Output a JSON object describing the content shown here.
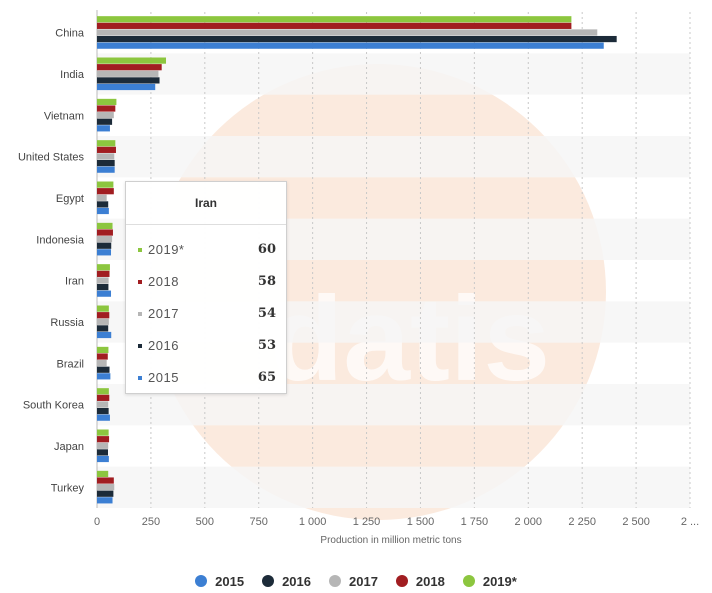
{
  "chart_data": {
    "type": "bar",
    "orientation": "horizontal",
    "categories": [
      "China",
      "India",
      "Vietnam",
      "United States",
      "Egypt",
      "Indonesia",
      "Iran",
      "Russia",
      "Brazil",
      "South Korea",
      "Japan",
      "Turkey"
    ],
    "series": [
      {
        "name": "2019*",
        "color": "#8cc63f",
        "values": [
          2200,
          320,
          90,
          85,
          76,
          72,
          60,
          55,
          53,
          55,
          54,
          52
        ]
      },
      {
        "name": "2018",
        "color": "#a11d21",
        "values": [
          2200,
          300,
          85,
          88,
          78,
          74,
          58,
          57,
          50,
          57,
          56,
          78
        ]
      },
      {
        "name": "2017",
        "color": "#b6b6b6",
        "values": [
          2320,
          285,
          78,
          80,
          45,
          70,
          54,
          55,
          45,
          52,
          52,
          80
        ]
      },
      {
        "name": "2016",
        "color": "#1c2b39",
        "values": [
          2410,
          290,
          70,
          82,
          52,
          66,
          53,
          52,
          58,
          54,
          51,
          76
        ]
      },
      {
        "name": "2015",
        "color": "#3c7fd3",
        "values": [
          2350,
          270,
          60,
          82,
          55,
          65,
          65,
          66,
          62,
          60,
          55,
          72
        ]
      }
    ],
    "xlabel": "Production in million metric tons",
    "xlim": [
      0,
      2750
    ],
    "xticks": [
      "0",
      "250",
      "500",
      "750",
      "1 000",
      "1 250",
      "1 500",
      "1 750",
      "2 000",
      "2 250",
      "2 500",
      "2 ..."
    ],
    "grid": "vertical dashed",
    "legend": {
      "position": "bottom-center",
      "entries": [
        "2015",
        "2016",
        "2017",
        "2018",
        "2019*"
      ],
      "colors": [
        "#3c7fd3",
        "#1c2b39",
        "#b6b6b6",
        "#a11d21",
        "#8cc63f"
      ]
    },
    "tooltip": {
      "title": "Iran",
      "rows": [
        {
          "label": "2019*",
          "value": "60",
          "color": "#8cc63f"
        },
        {
          "label": "2018",
          "value": "58",
          "color": "#a11d21"
        },
        {
          "label": "2017",
          "value": "54",
          "color": "#b6b6b6"
        },
        {
          "label": "2016",
          "value": "53",
          "color": "#1c2b39"
        },
        {
          "label": "2015",
          "value": "65",
          "color": "#3c7fd3"
        }
      ]
    },
    "watermark": "statista"
  }
}
